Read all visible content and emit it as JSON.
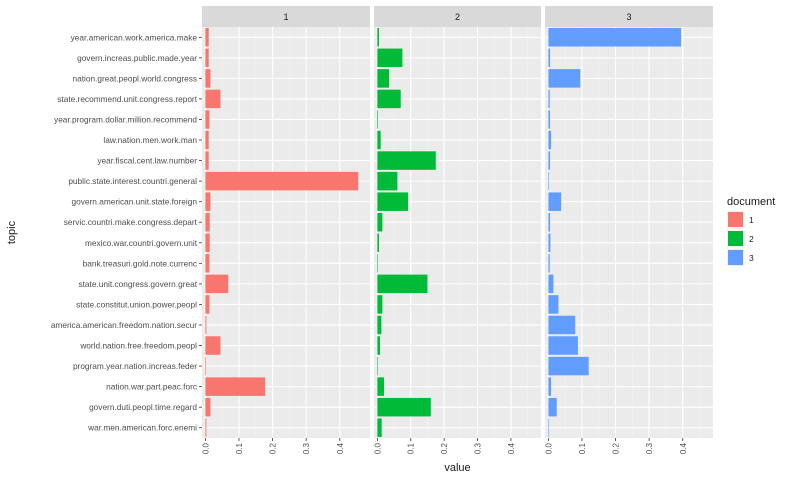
{
  "chart_data": {
    "type": "bar",
    "orientation": "horizontal",
    "facet_by": "document",
    "xlabel": "value",
    "ylabel": "topic",
    "xlim": [
      -0.01,
      0.49
    ],
    "xticks": [
      "0.0",
      "0.1",
      "0.2",
      "0.3",
      "0.4"
    ],
    "xtick_values": [
      0,
      0.1,
      0.2,
      0.3,
      0.4
    ],
    "legend": {
      "title": "document",
      "position": "right",
      "entries": [
        {
          "label": "1",
          "color": "#F8766D"
        },
        {
          "label": "2",
          "color": "#00BA38"
        },
        {
          "label": "3",
          "color": "#619CFF"
        }
      ]
    },
    "categories": [
      "year.american.work.america.make",
      "govern.increas.public.made.year",
      "nation.great.peopl.world.congress",
      "state.recommend.unit.congress.report",
      "year.program.dollar.million.recommend",
      "law.nation.men.work.man",
      "year.fiscal.cent.law.number",
      "public.state.interest.countri.general",
      "govern.american.unit.state.foreign",
      "servic.countri.make.congress.depart",
      "mexico.war.countri.govern.unit",
      "bank.treasuri.gold.note.currenc",
      "state.unit.congress.govern.great",
      "state.constitut.union.power.peopl",
      "america.american.freedom.nation.secur",
      "world.nation.free.freedom.peopl",
      "program.year.nation.increas.feder",
      "nation.war.part.peac.forc",
      "govern.duti.peopl.time.regard",
      "war.men.american.forc.enemi"
    ],
    "series": [
      {
        "name": "1",
        "color": "#F8766D",
        "values": [
          0.01,
          0.01,
          0.015,
          0.045,
          0.012,
          0.01,
          0.01,
          0.455,
          0.015,
          0.013,
          0.013,
          0.012,
          0.068,
          0.012,
          0.003,
          0.045,
          0.002,
          0.178,
          0.015,
          0.003
        ]
      },
      {
        "name": "2",
        "color": "#00BA38",
        "values": [
          0.005,
          0.075,
          0.035,
          0.07,
          0.002,
          0.01,
          0.175,
          0.06,
          0.092,
          0.015,
          0.005,
          0.001,
          0.15,
          0.015,
          0.012,
          0.008,
          0.001,
          0.02,
          0.16,
          0.013
        ]
      },
      {
        "name": "3",
        "color": "#619CFF",
        "values": [
          0.395,
          0.005,
          0.095,
          0.004,
          0.005,
          0.008,
          0.005,
          0.002,
          0.038,
          0.005,
          0.006,
          0.004,
          0.015,
          0.03,
          0.08,
          0.088,
          0.12,
          0.008,
          0.025,
          0.002
        ]
      }
    ]
  }
}
